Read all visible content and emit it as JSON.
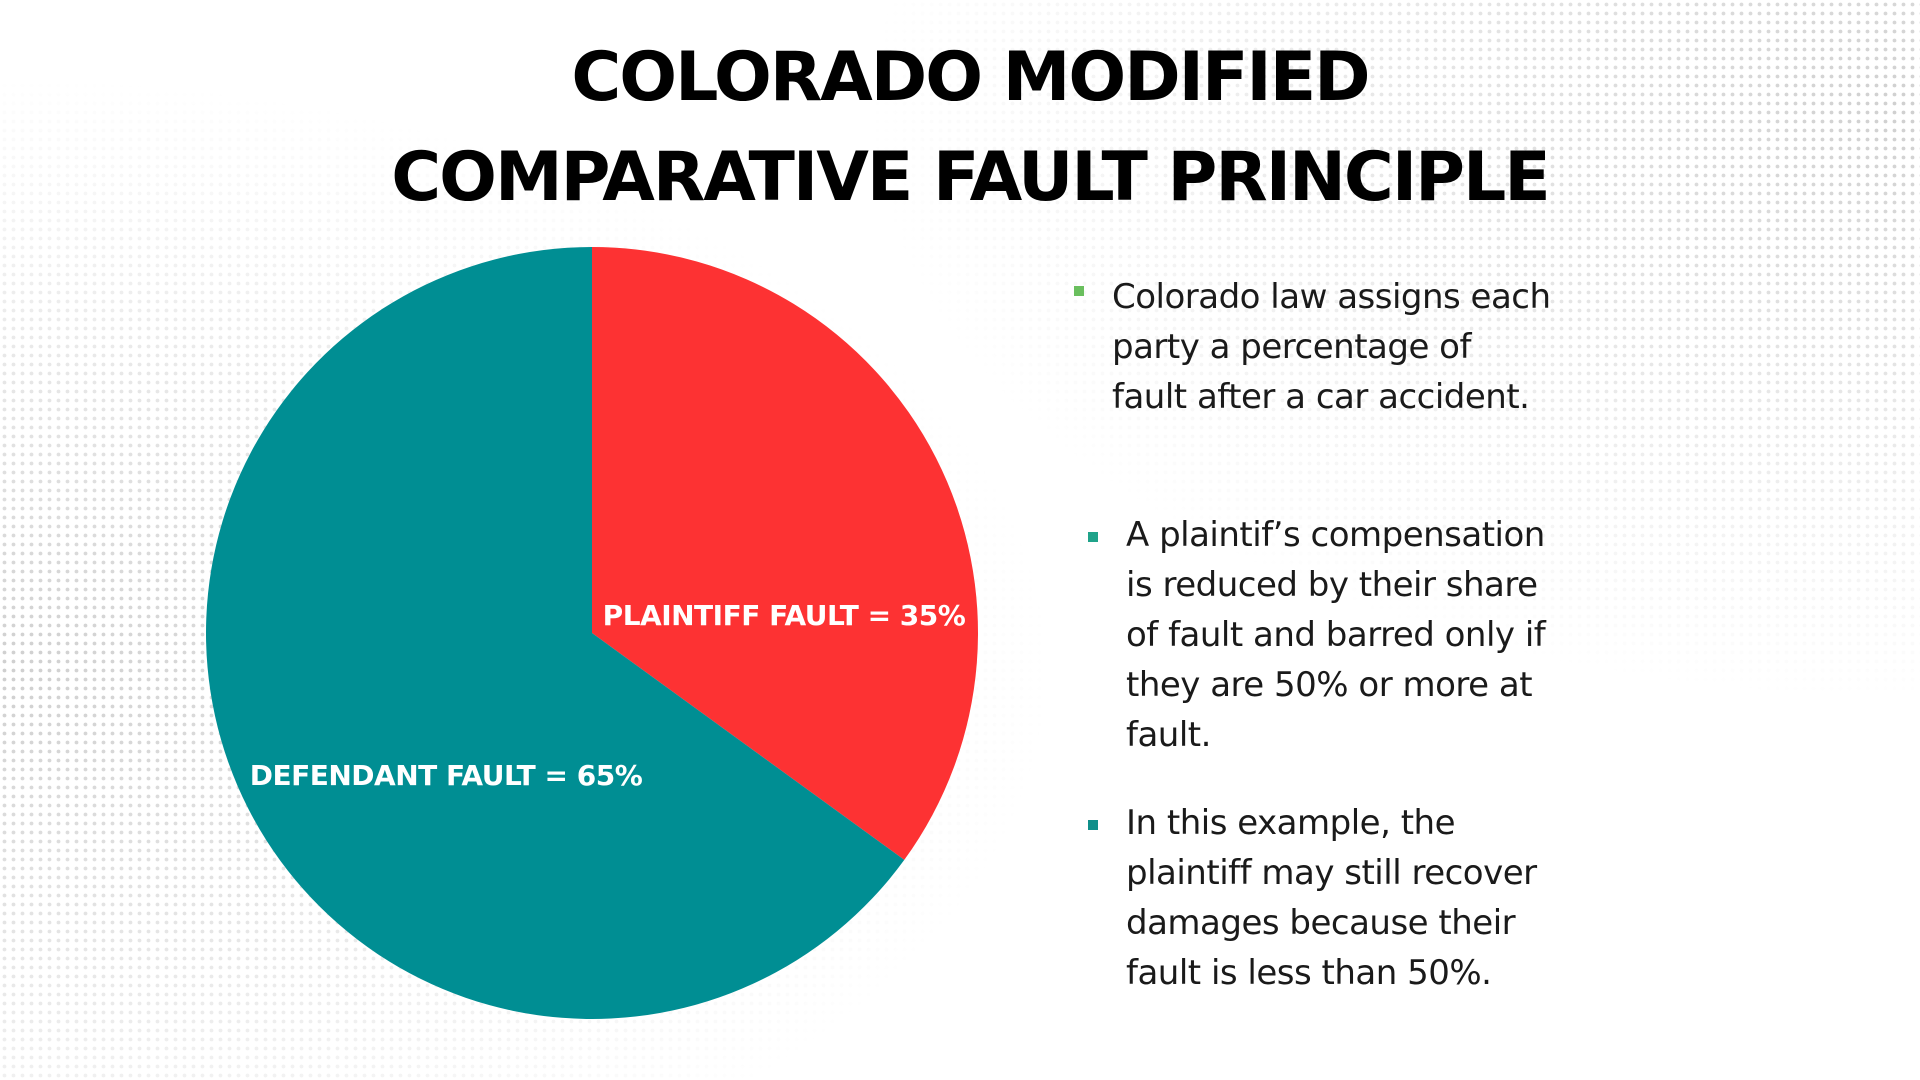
{
  "title": {
    "line1": "COLORADO MODIFIED",
    "line2": "COMPARATIVE FAULT PRINCIPLE"
  },
  "chart_data": {
    "type": "pie",
    "slices": [
      {
        "label": "PLAINTIFF FAULT = 35%",
        "value": 35,
        "color": "#fd3233"
      },
      {
        "label": "DEFENDANT FAULT = 65%",
        "value": 65,
        "color": "#008e93"
      }
    ]
  },
  "bullets": [
    {
      "text": "Colorado law assigns each party a percentage of fault after a car accident.",
      "marker_color": "#6abf5e"
    },
    {
      "text": "A plaintif’s compensation is reduced by their share of fault and barred only if they are 50% or more at fault.",
      "marker_color": "#1fa38a"
    },
    {
      "text": "In this example, the plaintiff may still recover damages because their fault is less than 50%.",
      "marker_color": "#0f8f8a"
    }
  ],
  "colors": {
    "background": "#ffffff",
    "dots": "#d4d4d4"
  }
}
